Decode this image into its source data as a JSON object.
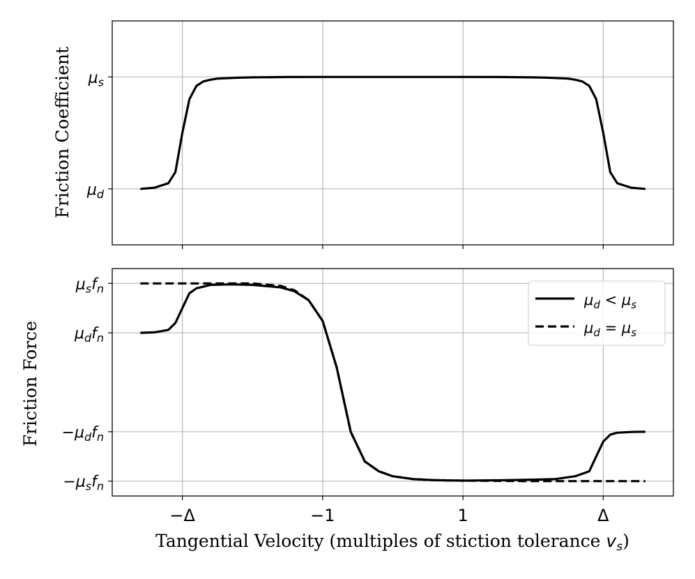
{
  "chart_data": [
    {
      "type": "line",
      "panel": "top",
      "ylabel": "Friction Coefficient",
      "xlim": [
        -4,
        4
      ],
      "ylim": [
        -0.5,
        1.5
      ],
      "x_ticks": [
        -3,
        -1,
        1,
        3
      ],
      "x_tick_labels": [
        "",
        "",
        "",
        ""
      ],
      "y_ticks": [
        0,
        1
      ],
      "y_tick_labels": [
        "μd",
        "μs"
      ],
      "grid": true,
      "series": [
        {
          "name": "friction coefficient",
          "style": "solid",
          "color": "#000000",
          "x": [
            -3.6,
            -3.4,
            -3.2,
            -3.1,
            -3.0,
            -2.9,
            -2.8,
            -2.7,
            -2.6,
            -2.5,
            -2.2,
            -2.0,
            -1.5,
            -1.0,
            0.0,
            1.0,
            1.5,
            2.0,
            2.2,
            2.5,
            2.6,
            2.7,
            2.8,
            2.9,
            3.0,
            3.1,
            3.2,
            3.4,
            3.6
          ],
          "y": [
            0.0,
            0.01,
            0.05,
            0.15,
            0.5,
            0.8,
            0.92,
            0.96,
            0.975,
            0.985,
            0.993,
            0.996,
            0.999,
            1.0,
            1.0,
            1.0,
            0.999,
            0.996,
            0.993,
            0.985,
            0.975,
            0.96,
            0.92,
            0.8,
            0.5,
            0.15,
            0.05,
            0.01,
            0.0
          ]
        }
      ]
    },
    {
      "type": "line",
      "panel": "bottom",
      "ylabel": "Friction Force",
      "xlabel": "Tangential Velocity (multiples of stiction tolerance ",
      "xlabel_var": "v",
      "xlabel_sub": "s",
      "xlabel_end": ")",
      "xlim": [
        -4,
        4
      ],
      "ylim": [
        -1.15,
        1.15
      ],
      "x_ticks": [
        -3,
        -1,
        1,
        3
      ],
      "x_tick_labels": [
        "−Δ",
        "−1",
        "1",
        "Δ"
      ],
      "y_ticks": [
        1.0,
        0.5,
        -0.5,
        -1.0
      ],
      "y_tick_labels": [
        "μsfn",
        "μdfn",
        "−μdfn",
        "−μsfn"
      ],
      "grid": true,
      "legend_position": "top-right",
      "series": [
        {
          "name": "μd < μs",
          "style": "solid",
          "color": "#000000",
          "x": [
            -3.6,
            -3.4,
            -3.2,
            -3.1,
            -3.0,
            -2.9,
            -2.8,
            -2.6,
            -2.3,
            -2.0,
            -1.6,
            -1.4,
            -1.2,
            -1.0,
            -0.8,
            -0.6,
            -0.4,
            -0.2,
            0.0,
            0.3,
            0.6,
            1.0,
            1.6,
            2.0,
            2.3,
            2.6,
            2.8,
            2.9,
            3.0,
            3.1,
            3.2,
            3.4,
            3.6
          ],
          "y": [
            0.5,
            0.505,
            0.53,
            0.6,
            0.75,
            0.9,
            0.95,
            0.985,
            0.99,
            0.985,
            0.96,
            0.92,
            0.83,
            0.62,
            0.15,
            -0.5,
            -0.8,
            -0.9,
            -0.95,
            -0.98,
            -0.99,
            -0.995,
            -0.99,
            -0.985,
            -0.98,
            -0.95,
            -0.9,
            -0.75,
            -0.6,
            -0.53,
            -0.51,
            -0.502,
            -0.5
          ]
        },
        {
          "name": "μd = μs",
          "style": "dashed",
          "color": "#000000",
          "x": [
            -3.6,
            -2.0,
            -1.6,
            -1.4,
            -1.2,
            -1.0,
            -0.8,
            -0.6,
            -0.4,
            -0.2,
            0.0,
            0.3,
            0.6,
            1.0,
            2.0,
            3.6
          ],
          "y": [
            1.0,
            1.0,
            0.975,
            0.93,
            0.83,
            0.62,
            0.15,
            -0.5,
            -0.8,
            -0.9,
            -0.95,
            -0.98,
            -0.99,
            -0.995,
            -1.0,
            -1.0
          ]
        }
      ]
    }
  ]
}
